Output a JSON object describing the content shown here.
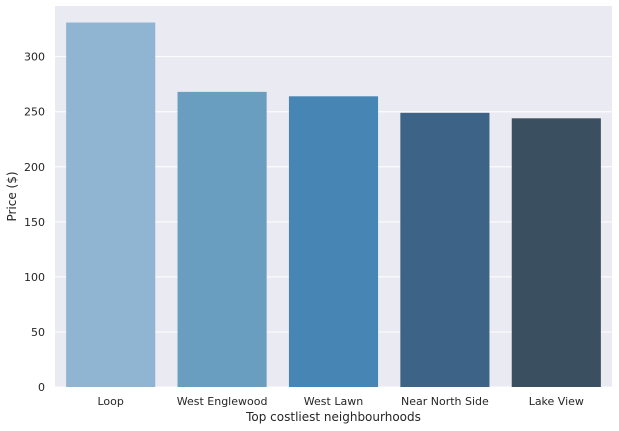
{
  "chart_data": {
    "type": "bar",
    "title": "",
    "xlabel": "Top costliest neighbourhoods",
    "ylabel": "Price ($)",
    "categories": [
      "Loop",
      "West Englewood",
      "West Lawn",
      "Near North Side",
      "Lake View"
    ],
    "values": [
      331,
      268,
      264,
      249,
      244
    ],
    "colors": [
      "#8fb5d2",
      "#6a9ec1",
      "#4785b4",
      "#3d6486",
      "#3a4f60"
    ],
    "ylim": [
      0,
      346
    ],
    "yticks": [
      0,
      50,
      100,
      150,
      200,
      250,
      300
    ],
    "grid": true,
    "legend": "none",
    "plot_background": "#eaeaf2",
    "grid_color": "#ffffff"
  }
}
